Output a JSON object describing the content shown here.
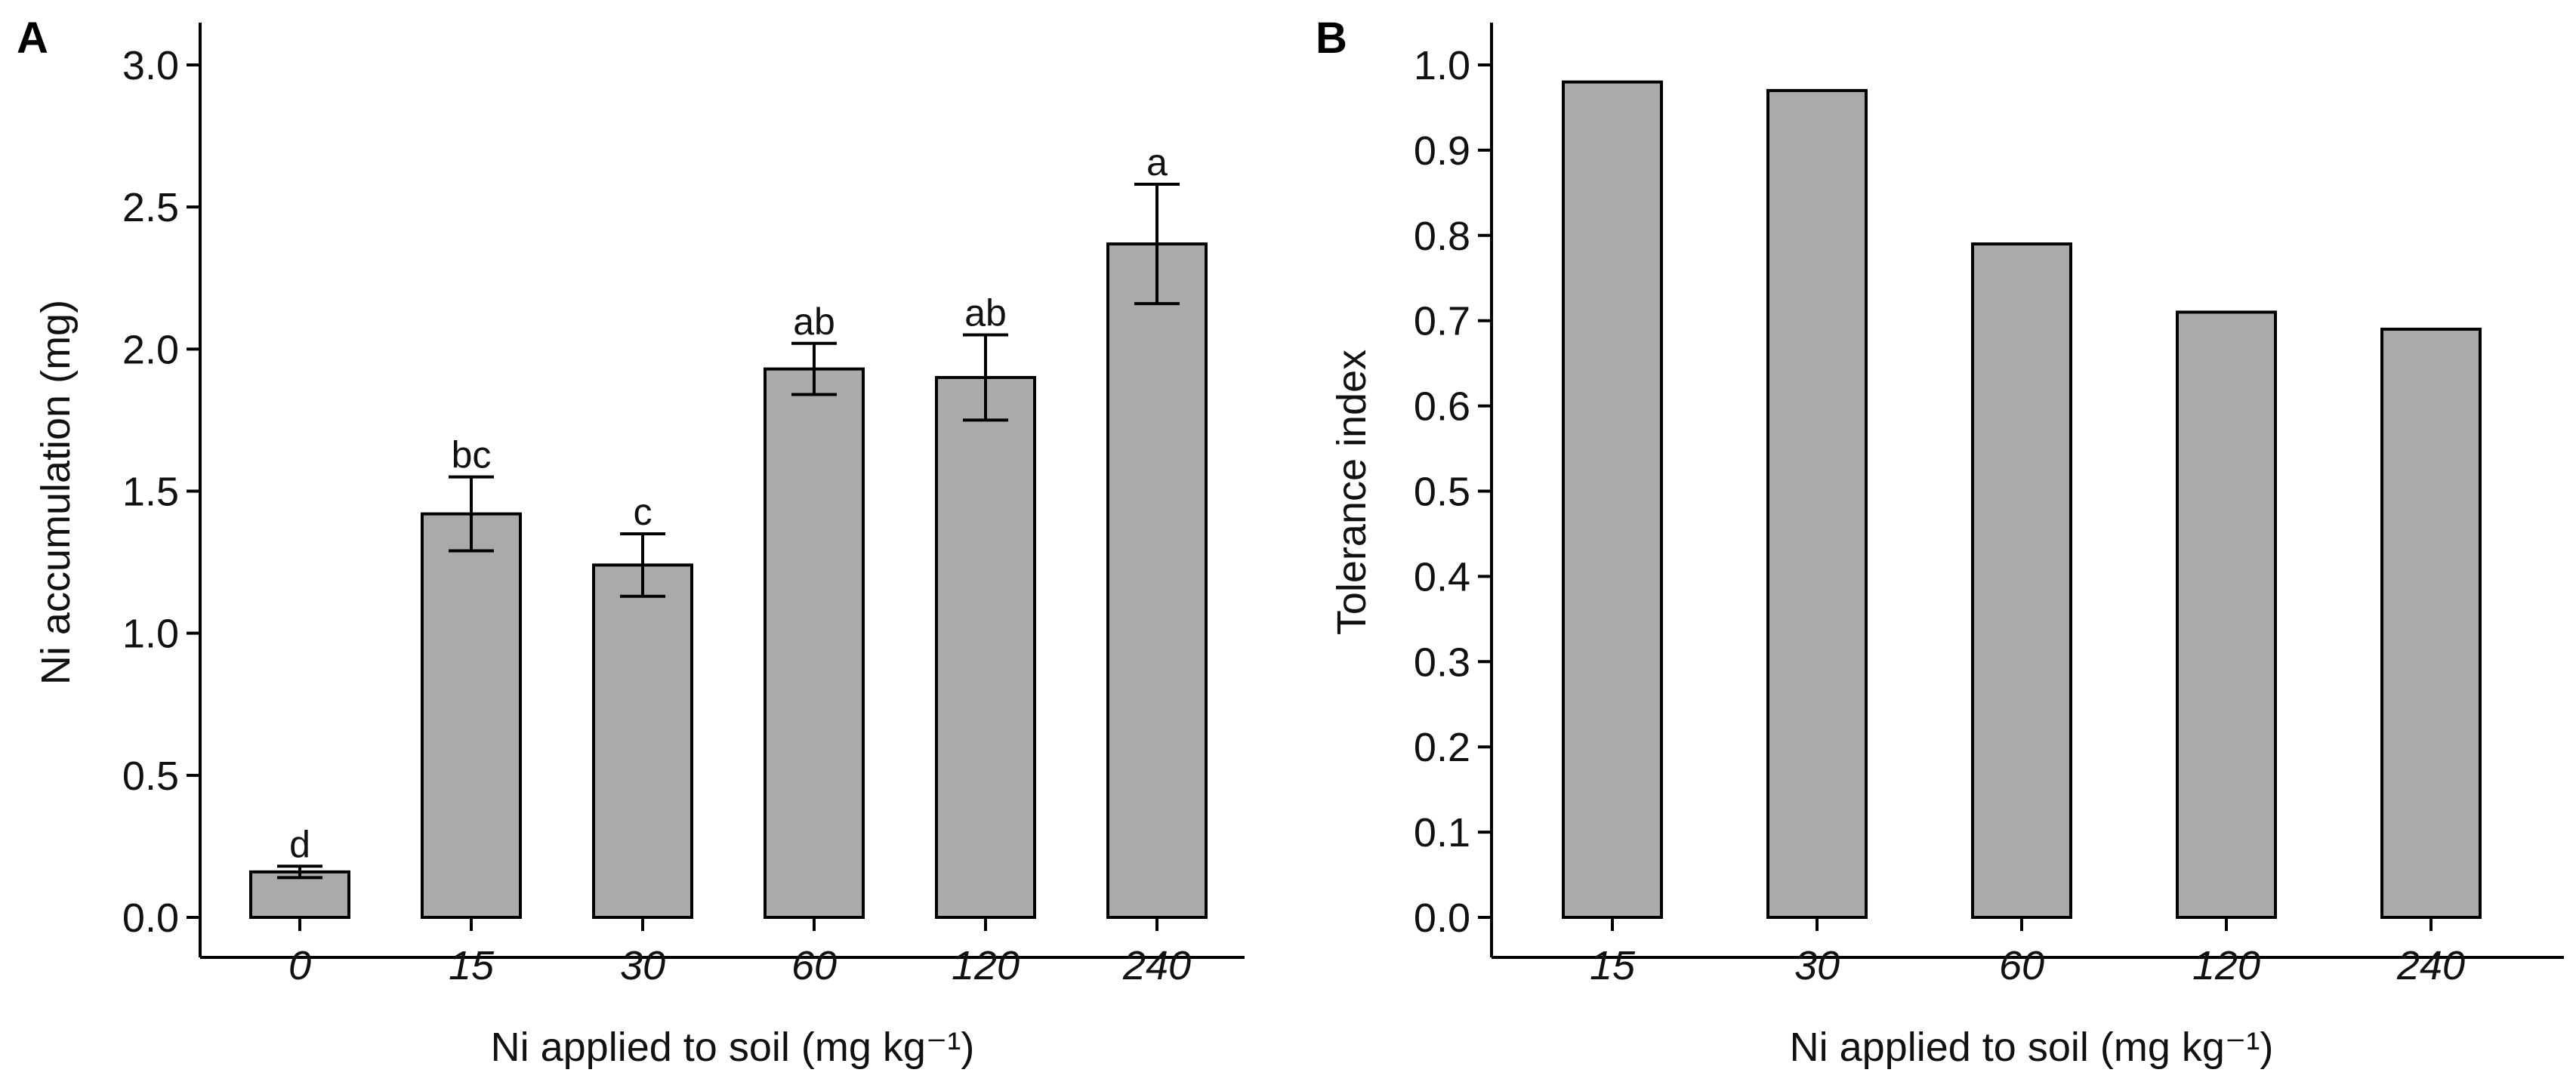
{
  "chart_data": [
    {
      "panel": "A",
      "type": "bar",
      "categories": [
        "0",
        "15",
        "30",
        "60",
        "120",
        "240"
      ],
      "values": [
        0.16,
        1.42,
        1.24,
        1.93,
        1.9,
        2.37
      ],
      "errors": [
        0.02,
        0.13,
        0.11,
        0.09,
        0.15,
        0.21
      ],
      "significance_letters": [
        "d",
        "bc",
        "c",
        "ab",
        "ab",
        "a"
      ],
      "xlabel": "Ni applied to soil (mg kg⁻¹)",
      "ylabel": "Ni accumulation (mg)",
      "ylim": [
        0,
        3.0
      ],
      "yticks": [
        "0.0",
        "0.5",
        "1.0",
        "1.5",
        "2.0",
        "2.5",
        "3.0"
      ],
      "bar_color": "#aaaaaa",
      "grid": false
    },
    {
      "panel": "B",
      "type": "bar",
      "categories": [
        "15",
        "30",
        "60",
        "120",
        "240"
      ],
      "values": [
        0.98,
        0.97,
        0.79,
        0.71,
        0.69
      ],
      "xlabel": "Ni applied to soil (mg kg⁻¹)",
      "ylabel": "Tolerance index",
      "ylim": [
        0,
        1.0
      ],
      "yticks": [
        "0.0",
        "0.1",
        "0.2",
        "0.3",
        "0.4",
        "0.5",
        "0.6",
        "0.7",
        "0.8",
        "0.9",
        "1.0"
      ],
      "bar_color": "#aaaaaa",
      "grid": false
    }
  ]
}
